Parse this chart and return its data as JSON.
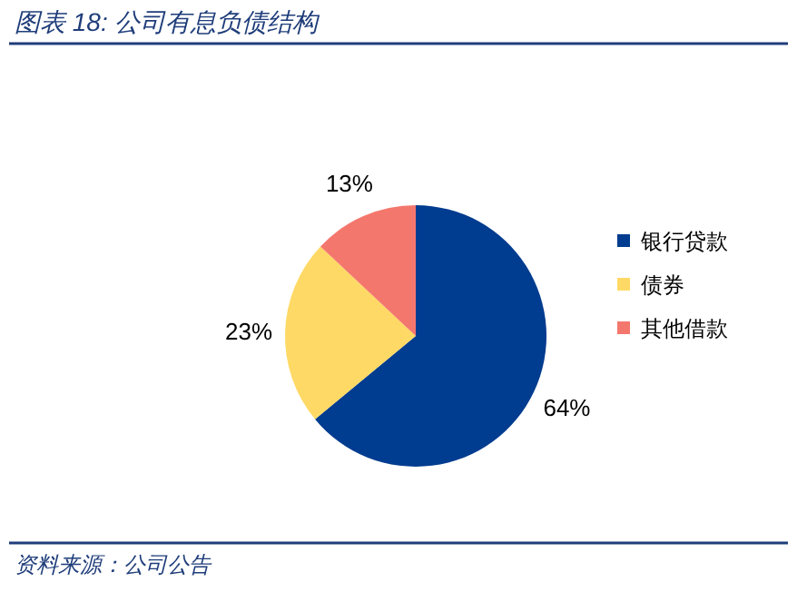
{
  "chart_data": {
    "type": "pie",
    "title": "图表 18:  公司有息负债结构",
    "categories": [
      "银行贷款",
      "债券",
      "其他借款"
    ],
    "values": [
      64,
      23,
      13
    ],
    "colors": [
      "#003c8f",
      "#ffd966",
      "#f4776e"
    ],
    "value_labels": [
      "64%",
      "23%",
      "13%"
    ],
    "legend": "right",
    "annotations": [
      "资料来源：公司公告"
    ]
  }
}
